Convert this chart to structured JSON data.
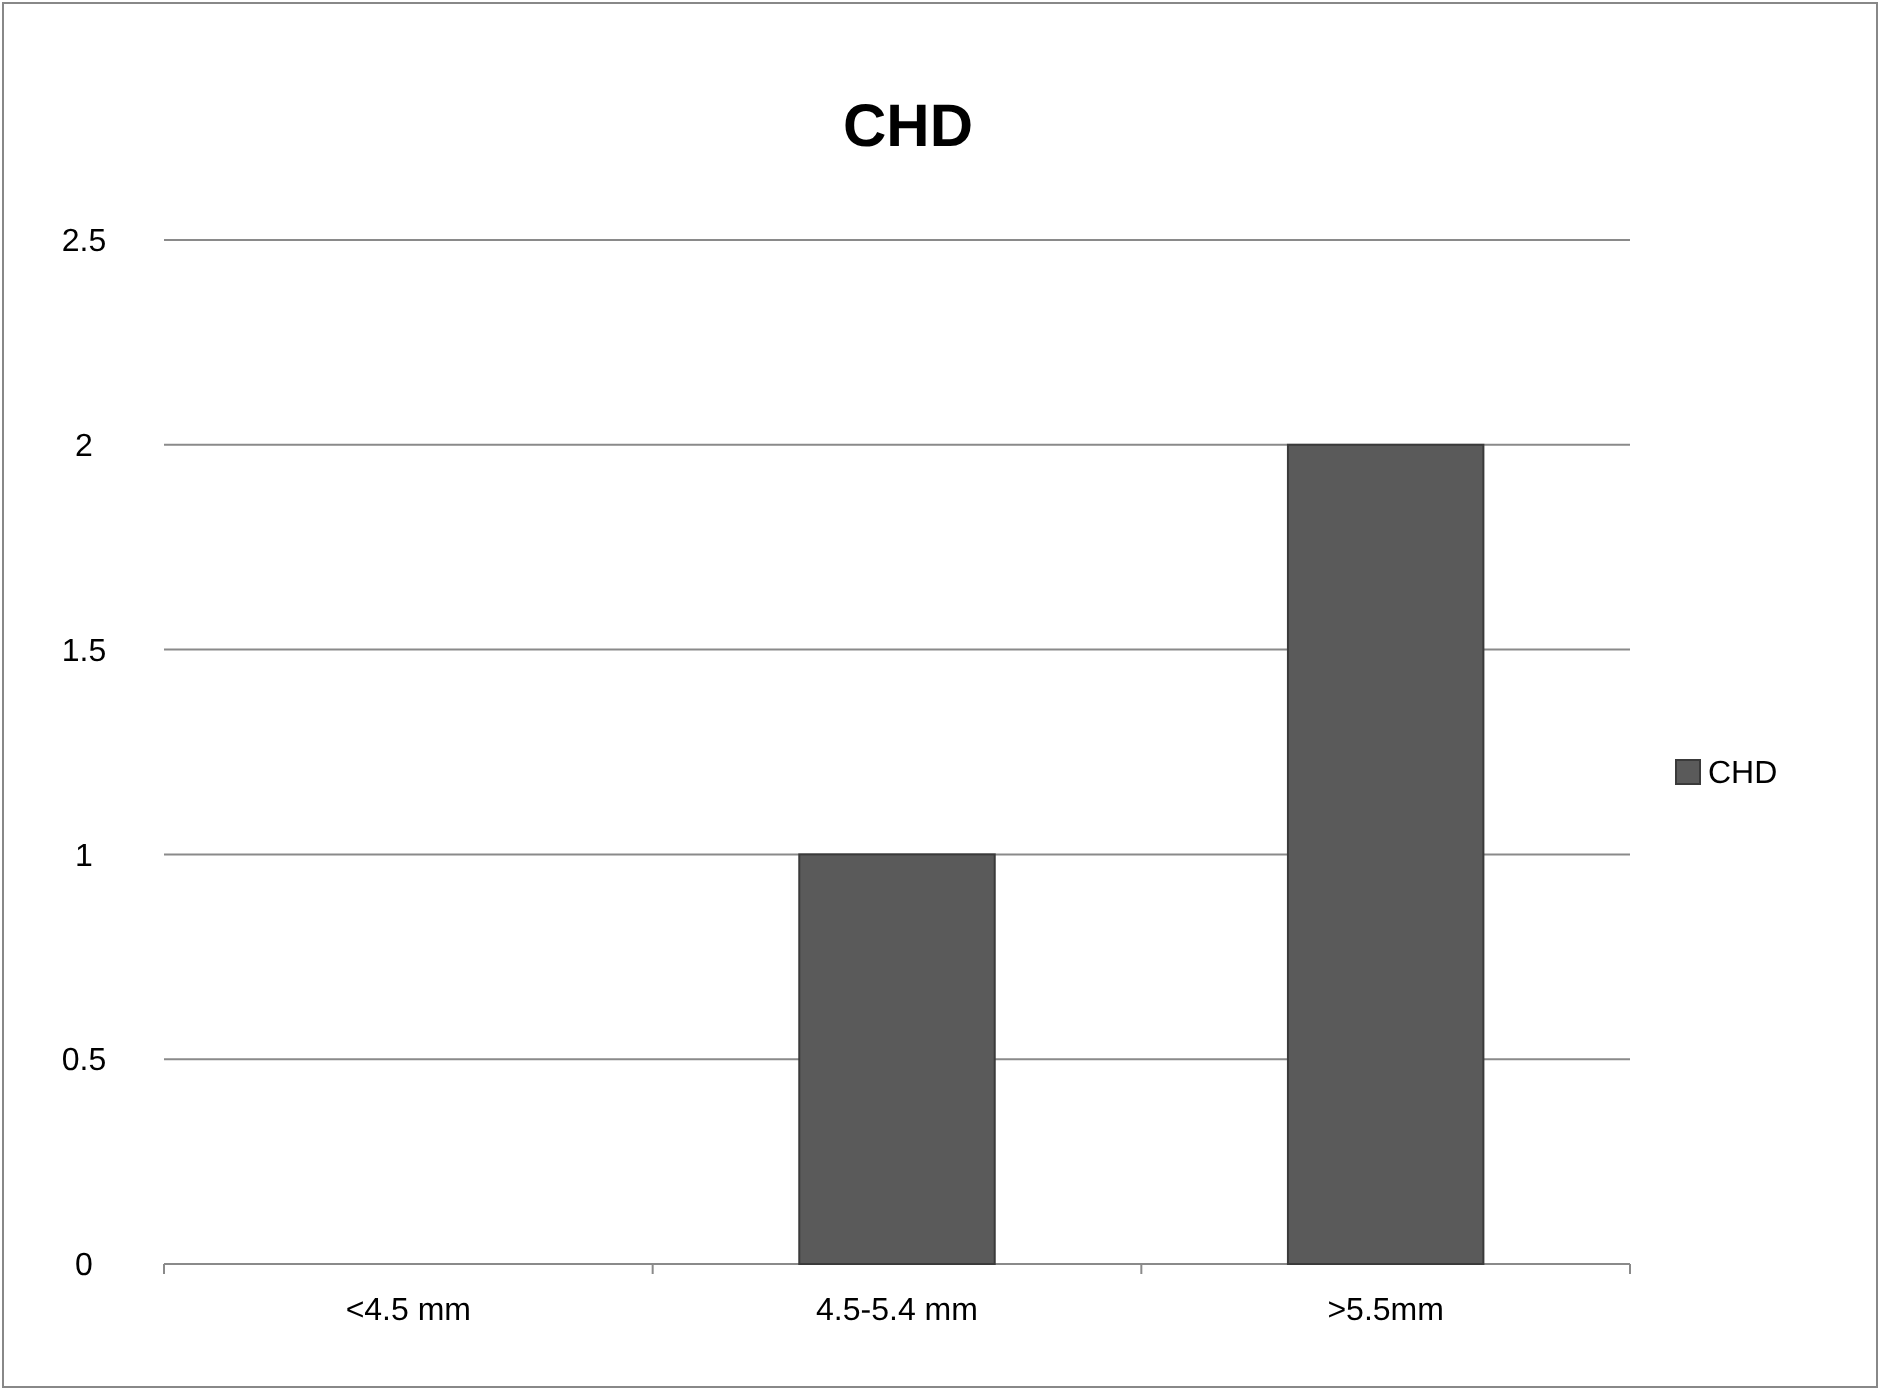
{
  "chart_data": {
    "type": "bar",
    "title": "CHD",
    "categories": [
      "<4.5 mm",
      "4.5-5.4 mm",
      ">5.5mm"
    ],
    "series": [
      {
        "name": "CHD",
        "color": "#5a5a5a",
        "values": [
          0,
          1,
          2
        ]
      }
    ],
    "ylim": [
      0,
      2.5
    ],
    "yticks": [
      0,
      0.5,
      1,
      1.5,
      2,
      2.5
    ],
    "grid": "y",
    "legend": "right"
  }
}
